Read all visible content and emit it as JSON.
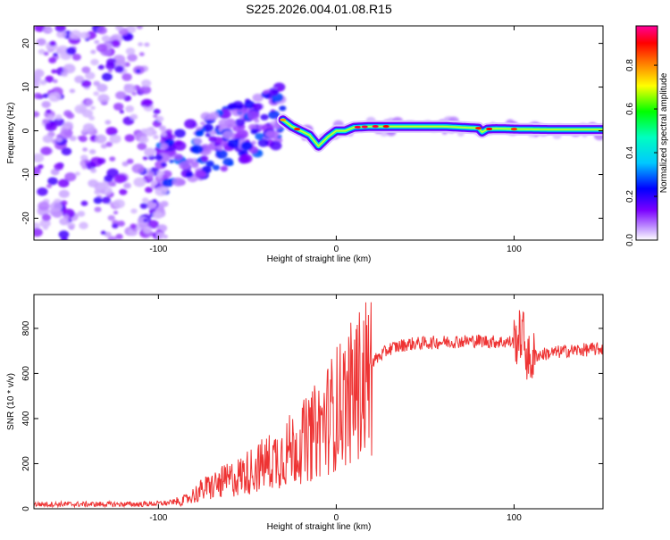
{
  "title": "S225.2026.004.01.08.R15",
  "chart_data": [
    {
      "type": "heatmap",
      "title": "S225.2026.004.01.08.R15",
      "xlabel": "Height of straight line (km)",
      "ylabel": "Frequency (Hz)",
      "xlim": [
        -170,
        150
      ],
      "ylim": [
        -25,
        24
      ],
      "xticks": [
        -100,
        0,
        100
      ],
      "yticks": [
        -20,
        -10,
        0,
        10,
        20
      ],
      "colorbar": {
        "label": "Normalized spectral amplitude",
        "range": [
          0.0,
          0.98
        ],
        "ticks": [
          "0.0",
          "0.2",
          "0.4",
          "0.6",
          "0.8"
        ],
        "tick_values": [
          0.0,
          0.2,
          0.4,
          0.6,
          0.8
        ],
        "colors": [
          "#ffffff",
          "#7b00ff",
          "#0000ff",
          "#00ffff",
          "#00ff00",
          "#ffff00",
          "#ff0000",
          "#ff0099"
        ]
      },
      "ridge_x": [
        -30,
        -25,
        -20,
        -15,
        -10,
        -5,
        0,
        5,
        10,
        20,
        40,
        60,
        80,
        82,
        85,
        90,
        100,
        120,
        150
      ],
      "ridge_y": [
        2.5,
        1.0,
        0.0,
        -1.0,
        -3.5,
        -1.5,
        0.0,
        0.0,
        0.8,
        1.0,
        1.0,
        1.0,
        0.6,
        -0.3,
        0.4,
        0.5,
        0.4,
        0.3,
        0.3
      ]
    },
    {
      "type": "line",
      "xlabel": "Height of straight line (km)",
      "ylabel": "SNR (10 * v/v)",
      "xlim": [
        -170,
        150
      ],
      "ylim": [
        0,
        950
      ],
      "xticks": [
        -100,
        0,
        100
      ],
      "yticks": [
        0,
        200,
        400,
        600,
        800
      ],
      "series": [
        {
          "name": "SNR",
          "color": "#ee3333",
          "x": [
            -170,
            -140,
            -110,
            -95,
            -85,
            -75,
            -65,
            -55,
            -45,
            -35,
            -25,
            -15,
            -5,
            0,
            10,
            20,
            30,
            40,
            60,
            80,
            90,
            100,
            105,
            108,
            112,
            120,
            130,
            150
          ],
          "y": [
            20,
            20,
            20,
            25,
            40,
            90,
            120,
            150,
            190,
            230,
            280,
            330,
            420,
            470,
            550,
            650,
            710,
            730,
            740,
            745,
            740,
            740,
            780,
            650,
            680,
            690,
            700,
            710
          ]
        }
      ]
    }
  ]
}
